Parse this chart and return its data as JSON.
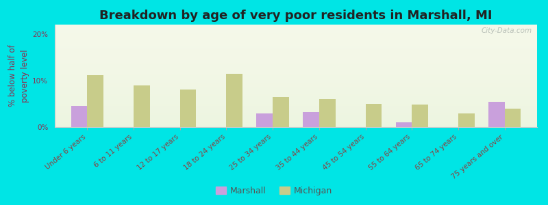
{
  "title": "Breakdown by age of very poor residents in Marshall, MI",
  "ylabel": "% below half of\npoverty level",
  "categories": [
    "Under 6 years",
    "6 to 11 years",
    "12 to 17 years",
    "18 to 24 years",
    "25 to 34 years",
    "35 to 44 years",
    "45 to 54 years",
    "55 to 64 years",
    "65 to 74 years",
    "75 years and over"
  ],
  "marshall_values": [
    4.5,
    0,
    0,
    0,
    3.0,
    3.2,
    0,
    1.0,
    0,
    5.5
  ],
  "michigan_values": [
    11.2,
    9.0,
    8.0,
    11.5,
    6.5,
    6.0,
    5.0,
    4.8,
    3.0,
    4.0
  ],
  "marshall_color": "#c9a0dc",
  "michigan_color": "#c8cc8a",
  "background_outer": "#00e5e5",
  "background_plot_top": "#f5f8e8",
  "ylabel_color": "#8B3050",
  "tick_label_color": "#8B4040",
  "ylim": [
    0,
    22
  ],
  "yticks": [
    0,
    10,
    20
  ],
  "ytick_labels": [
    "0%",
    "10%",
    "20%"
  ],
  "bar_width": 0.35,
  "title_fontsize": 13,
  "axis_fontsize": 8.5,
  "tick_fontsize": 7.5,
  "legend_fontsize": 9
}
